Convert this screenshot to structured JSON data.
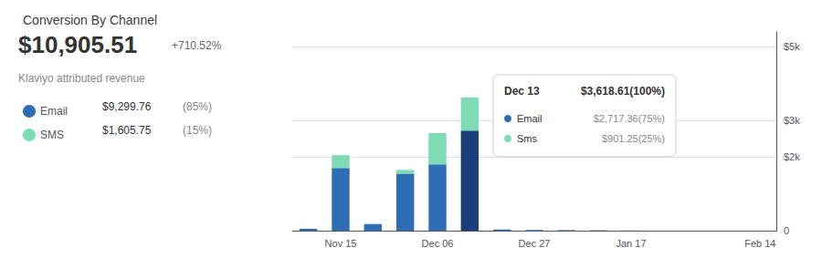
{
  "chart_data": {
    "type": "bar",
    "title": "Conversion By Channel",
    "subtitle": "Klaviyo attributed revenue",
    "categories": [
      null,
      "Nov 15",
      null,
      null,
      "Dec 06",
      null,
      null,
      "Dec 27",
      null,
      null,
      "Jan 17",
      null,
      null,
      null,
      "Feb 14"
    ],
    "series": [
      {
        "name": "Email",
        "color": "#2E6DB4",
        "colors": [
          "#2E6DB4",
          "#2E6DB4",
          "#2E6DB4",
          "#2E6DB4",
          "#2E6DB4",
          "#1a3f7a",
          "#2E6DB4",
          "#2E6DB4",
          "#2E6DB4",
          "#2E6DB4",
          "#2E6DB4",
          "#2E6DB4",
          "#2E6DB4",
          "#2E6DB4",
          "#2E6DB4"
        ],
        "values": [
          50,
          1700,
          180,
          1550,
          1800,
          2717.36,
          30,
          20,
          15,
          10,
          5,
          0,
          0,
          0,
          0
        ]
      },
      {
        "name": "SMS",
        "color": "#7DDBB5",
        "values": [
          0,
          350,
          0,
          100,
          850,
          901.25,
          5,
          5,
          0,
          0,
          0,
          0,
          0,
          0,
          0
        ]
      }
    ],
    "stacked": true,
    "ylim": [
      0,
      5400
    ],
    "yticks": [
      0,
      {
        "value": 2000,
        "label": "$2k"
      },
      {
        "value": 3000,
        "label": "$3k"
      },
      {
        "value": 5000,
        "label": "$5k"
      }
    ],
    "grid": true,
    "legend": "left",
    "annotations": [
      "$10,905.51",
      "+710.52%",
      "$9,299.76",
      "(85%)",
      "$1,605.75",
      "(15%)",
      "Dec 13",
      "$3,618.61(100%)",
      "Email",
      "$2,717.36(75%)",
      "Sms",
      "$901.25(25%)"
    ]
  }
}
